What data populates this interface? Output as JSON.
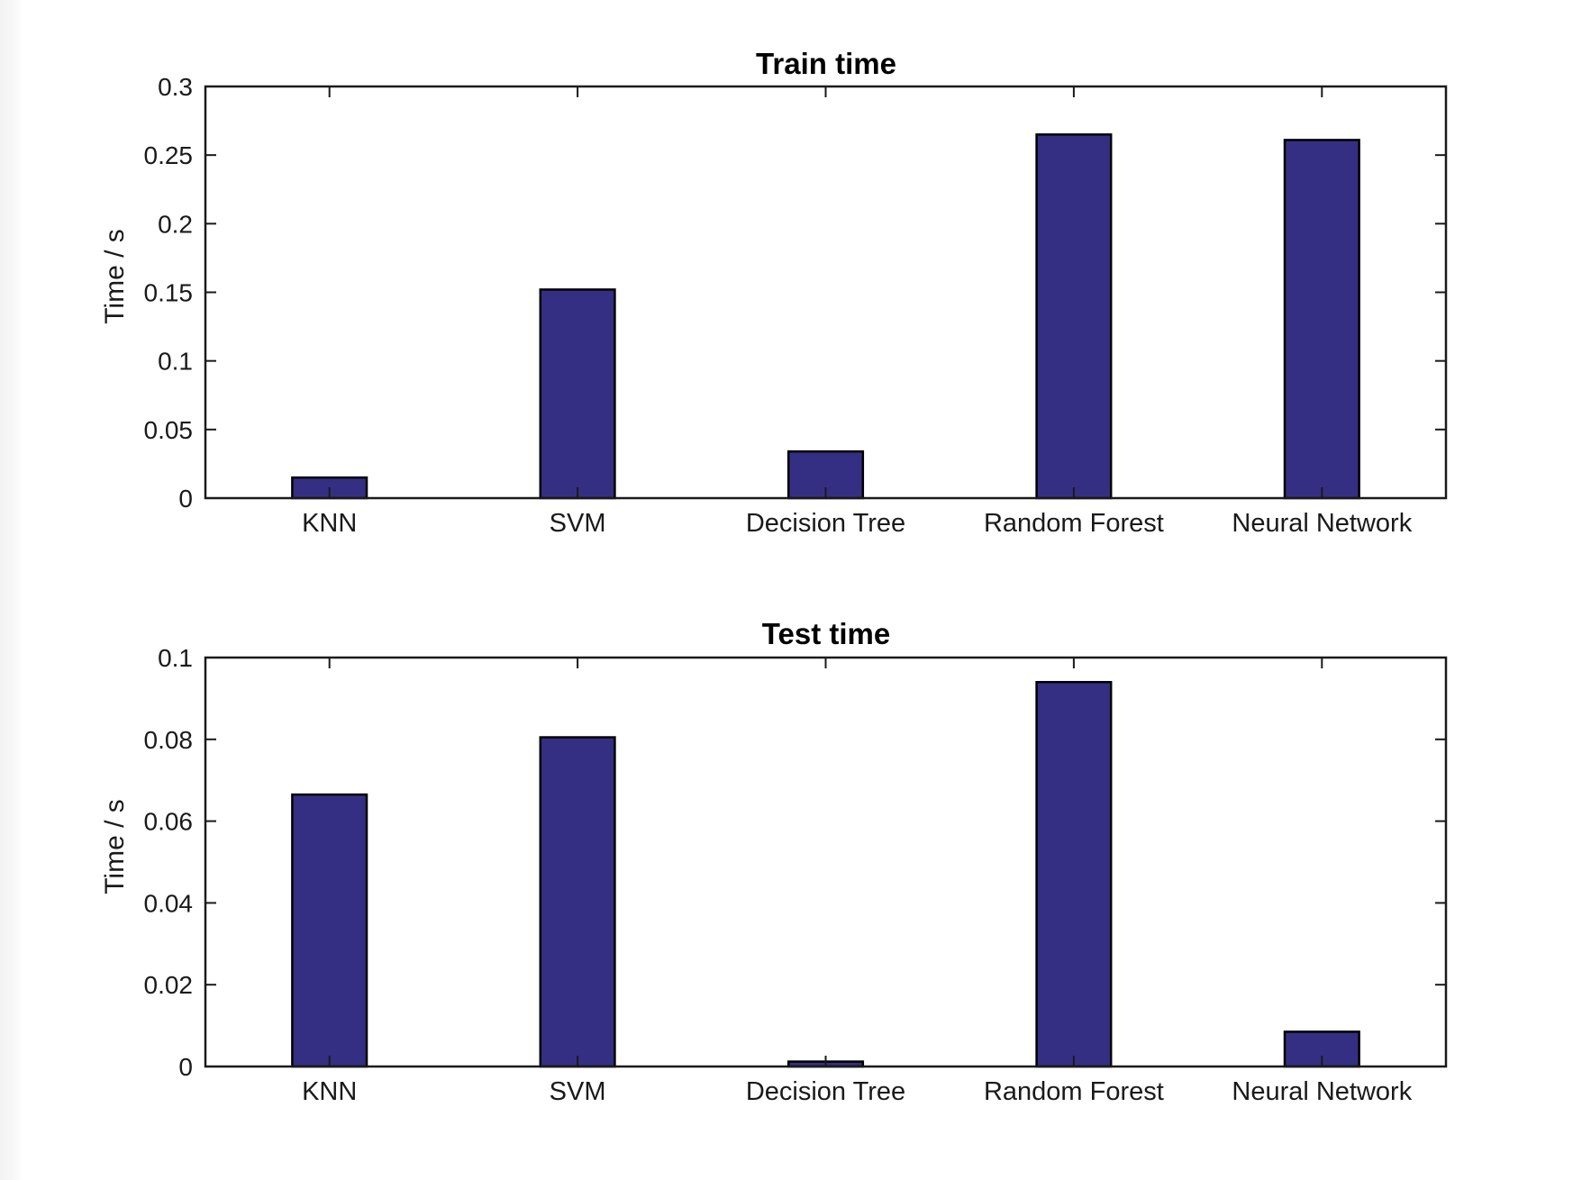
{
  "chart_data": [
    {
      "type": "bar",
      "title": "Train time",
      "xlabel": "",
      "ylabel": "Time / s",
      "categories": [
        "KNN",
        "SVM",
        "Decision Tree",
        "Random Forest",
        "Neural Network"
      ],
      "values": [
        0.015,
        0.152,
        0.034,
        0.265,
        0.261
      ],
      "ylim": [
        0,
        0.3
      ],
      "yticks": [
        0,
        0.05,
        0.1,
        0.15,
        0.2,
        0.25,
        0.3
      ],
      "ytick_labels": [
        "0",
        "0.05",
        "0.1",
        "0.15",
        "0.2",
        "0.25",
        "0.3"
      ],
      "grid": false,
      "legend": "none"
    },
    {
      "type": "bar",
      "title": "Test time",
      "xlabel": "",
      "ylabel": "Time / s",
      "categories": [
        "KNN",
        "SVM",
        "Decision Tree",
        "Random Forest",
        "Neural Network"
      ],
      "values": [
        0.0665,
        0.0805,
        0.0012,
        0.094,
        0.0085
      ],
      "ylim": [
        0,
        0.1
      ],
      "yticks": [
        0,
        0.02,
        0.04,
        0.06,
        0.08,
        0.1
      ],
      "ytick_labels": [
        "0",
        "0.02",
        "0.04",
        "0.06",
        "0.08",
        "0.1"
      ],
      "grid": false,
      "legend": "none"
    }
  ],
  "colors": {
    "bar_fill": "#352f83",
    "bar_edge": "#000000",
    "axis": "#1a1a1a",
    "background": "#ffffff"
  }
}
